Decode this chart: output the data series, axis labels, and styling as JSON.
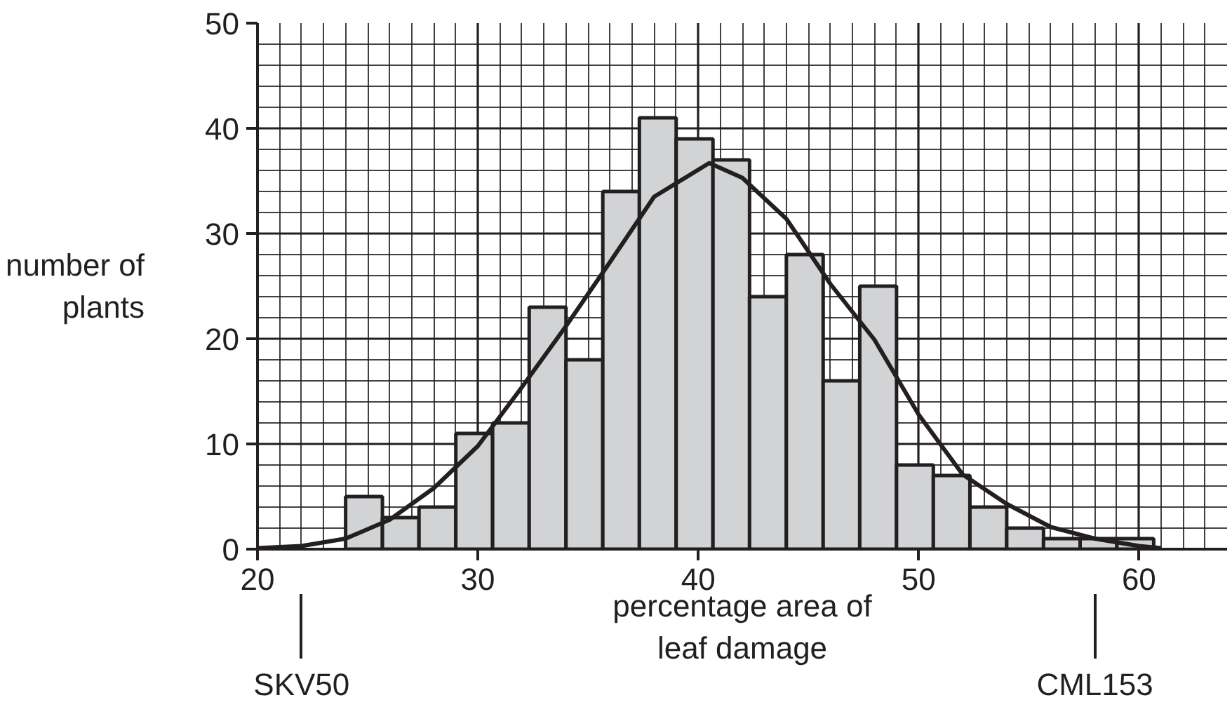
{
  "chart_data": {
    "type": "histogram",
    "xlabel": "percentage area of leaf damage",
    "ylabel": "number of plants",
    "bins": [
      24,
      25.67,
      27.33,
      29,
      30.67,
      32.33,
      34,
      35.67,
      37.33,
      39,
      40.67,
      42.33,
      44,
      45.67,
      47.33,
      49,
      50.67,
      52.33,
      54,
      55.67,
      57.33,
      59,
      60.67
    ],
    "values": [
      5,
      3,
      4,
      11,
      12,
      23,
      18,
      34,
      41,
      39,
      37,
      24,
      28,
      16,
      25,
      8,
      7,
      4,
      2,
      1,
      1,
      1
    ],
    "color": "#d1d3d4",
    "series": [
      {
        "type": "line",
        "color": "#231f20",
        "x": [
          20,
          22,
          24,
          26,
          28,
          30,
          32,
          34,
          36,
          38,
          40.5,
          42,
          44,
          46,
          48,
          50,
          52,
          54,
          56,
          58,
          60,
          61
        ],
        "values": [
          0.1,
          0.3,
          1,
          2.8,
          5.8,
          9.8,
          15.4,
          21.2,
          27.3,
          33.5,
          36.7,
          35.3,
          31.4,
          25.2,
          19.9,
          12.8,
          7.1,
          4.3,
          2.1,
          1,
          0.3,
          0.1
        ]
      }
    ],
    "xlim": [
      20,
      64
    ],
    "ylim": [
      0,
      50
    ],
    "xticks": [
      20,
      30,
      40,
      50,
      60
    ],
    "yticks": [
      0,
      10,
      20,
      30,
      40,
      50
    ],
    "grid": true,
    "annotations": [
      {
        "text": "SKV50",
        "x": 22
      },
      {
        "text": "CML153",
        "x": 58
      }
    ]
  }
}
